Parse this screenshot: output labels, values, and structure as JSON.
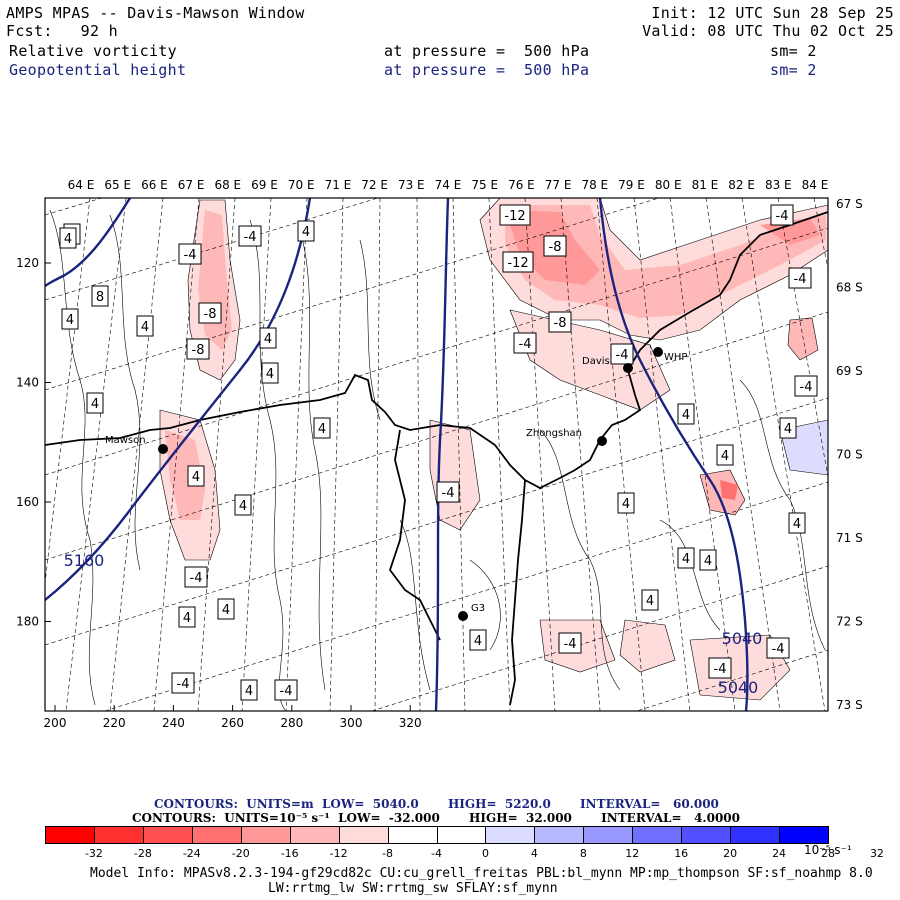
{
  "header": {
    "line1_left": "AMPS MPAS -- Davis-Mawson Window",
    "line2_left": "Fcst:   92 h",
    "line1_right": "Init: 12 UTC Sun 28 Sep 25",
    "line2_right": "Valid: 08 UTC Thu 02 Oct 25"
  },
  "fields": [
    {
      "name": "Relative vorticity",
      "level": "at pressure =  500 hPa",
      "smooth": "sm= 2",
      "color": "#000000"
    },
    {
      "name": "Geopotential height",
      "level": "at pressure =  500 hPa",
      "smooth": "sm= 2",
      "color": "#1a237e"
    }
  ],
  "map": {
    "top_lon_labels": [
      "64 E",
      "65 E",
      "66 E",
      "67 E",
      "68 E",
      "69 E",
      "70 E",
      "71 E",
      "72 E",
      "73 E",
      "74 E",
      "75 E",
      "76 E",
      "77 E",
      "78 E",
      "79 E",
      "80 E",
      "81 E",
      "82 E",
      "83 E",
      "84 E"
    ],
    "right_lat_labels": [
      "67 S",
      "68 S",
      "69 S",
      "70 S",
      "71 S",
      "72 S",
      "73 S"
    ],
    "left_y_labels": [
      "120",
      "140",
      "160",
      "180"
    ],
    "bottom_x_labels": [
      "200",
      "220",
      "240",
      "260",
      "280",
      "300",
      "320"
    ],
    "stations": [
      {
        "name": "Mawson"
      },
      {
        "name": "Davis"
      },
      {
        "name": "WHP"
      },
      {
        "name": "Zhongshan"
      },
      {
        "name": "G3"
      }
    ],
    "vort_labels": [
      "4",
      "4",
      "-4",
      "-4",
      "4",
      "8",
      "4",
      "4",
      "-8",
      "-8",
      "4",
      "4",
      "4",
      "4",
      "4",
      "4",
      "4",
      "-4",
      "4",
      "-4",
      "4",
      "-4",
      "4",
      "-4",
      "4",
      "4",
      "-12",
      "-12",
      "-8",
      "-8",
      "-4",
      "-4",
      "-4",
      "4",
      "-4",
      "-4",
      "4",
      "4",
      "4",
      "4",
      "-4",
      "4",
      "-4",
      "-4"
    ],
    "height_labels": [
      "5160",
      "5040",
      "5040"
    ]
  },
  "colorbar": {
    "line1": "CONTOURS:  UNITS=m  LOW=  5040.0       HIGH=  5220.0       INTERVAL=   60.000",
    "line2": "CONTOURS:  UNITS=10⁻⁵ s⁻¹  LOW=  -32.000       HIGH=  32.000       INTERVAL=   4.0000",
    "colors": [
      "#ff0000",
      "#ff3030",
      "#ff5050",
      "#ff7070",
      "#ff9898",
      "#ffb8b8",
      "#ffdcdc",
      "#ffffff",
      "#ffffff",
      "#dcdcff",
      "#b8b8ff",
      "#9898ff",
      "#7070ff",
      "#5050ff",
      "#3030ff",
      "#0000ff"
    ],
    "tick_labels": [
      "-32",
      "-28",
      "-24",
      "-20",
      "-16",
      "-12",
      "-8",
      "-4",
      "0",
      "4",
      "8",
      "12",
      "16",
      "20",
      "24",
      "28",
      "32"
    ],
    "units": "10⁻⁵ s⁻¹"
  },
  "footer": {
    "line1": "Model Info: MPASv8.2.3-194-gf29cd82c CU:cu_grell_freitas PBL:bl_mynn MP:mp_thompson SF:sf_noahmp 8.0",
    "line2": "LW:rrtmg_lw SW:rrtmg_sw SFLAY:sf_mynn"
  }
}
